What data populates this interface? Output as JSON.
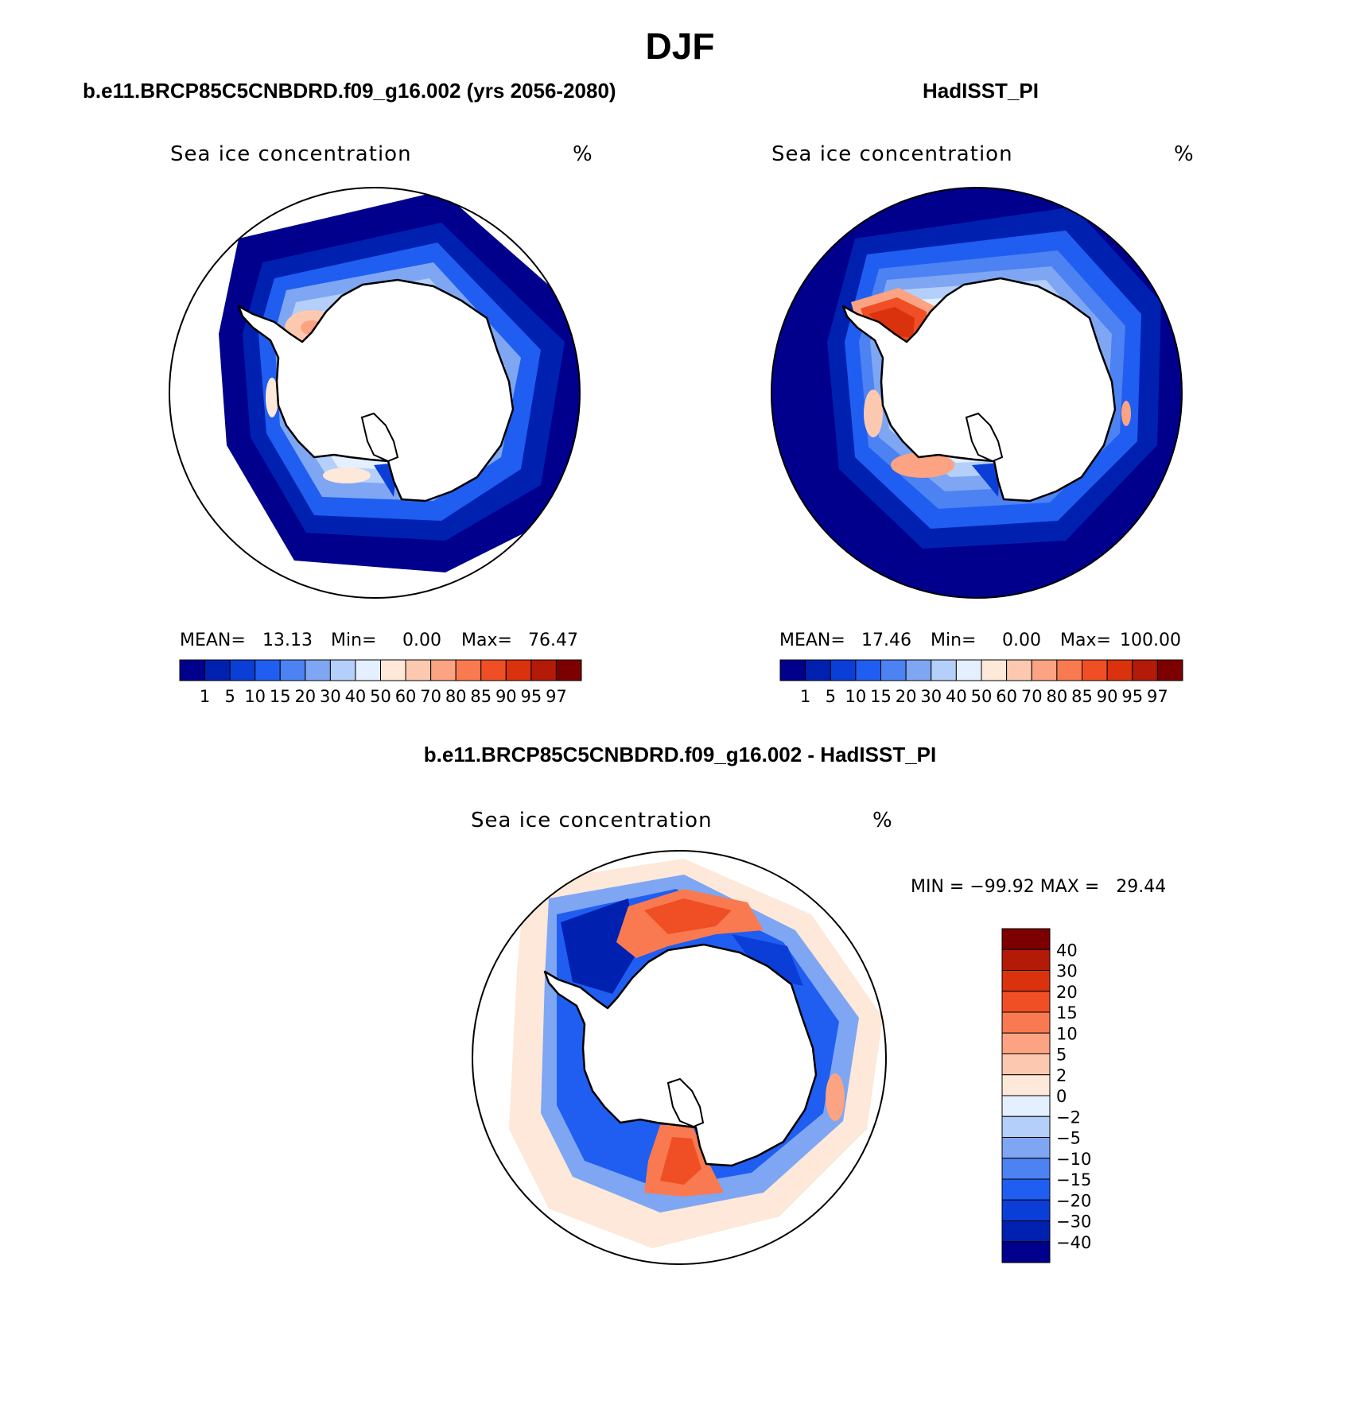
{
  "figure": {
    "title": "DJF"
  },
  "colors": {
    "seq": [
      "#00008c",
      "#0021b0",
      "#0b3ed6",
      "#1f5ef0",
      "#4c82f2",
      "#7ea6f3",
      "#b4cff9",
      "#e4efff",
      "#fde8d9",
      "#fcc9b0",
      "#fba382",
      "#f97a50",
      "#f04e24",
      "#d9320d",
      "#b31a08",
      "#7d0000"
    ],
    "land": "#ffffff",
    "coast": "#000000"
  },
  "chart_data": [
    {
      "type": "heatmap",
      "projection": "south-polar-stereographic",
      "panel_title": "b.e11.BRCP85C5CNBDRD.f09_g16.002 (yrs 2056-2080)",
      "field_label": "Sea ice concentration",
      "units": "%",
      "stats": {
        "mean_label": "MEAN=",
        "mean": "13.13",
        "min_label": "Min=",
        "min": "0.00",
        "max_label": "Max=",
        "max": "76.47"
      },
      "levels": [
        "1",
        "5",
        "10",
        "15",
        "20",
        "30",
        "40",
        "50",
        "60",
        "70",
        "80",
        "85",
        "90",
        "95",
        "97"
      ]
    },
    {
      "type": "heatmap",
      "projection": "south-polar-stereographic",
      "panel_title": "HadISST_PI",
      "field_label": "Sea ice concentration",
      "units": "%",
      "stats": {
        "mean_label": "MEAN=",
        "mean": "17.46",
        "min_label": "Min=",
        "min": "0.00",
        "max_label": "Max=",
        "max": "100.00"
      },
      "levels": [
        "1",
        "5",
        "10",
        "15",
        "20",
        "30",
        "40",
        "50",
        "60",
        "70",
        "80",
        "85",
        "90",
        "95",
        "97"
      ]
    },
    {
      "type": "heatmap",
      "projection": "south-polar-stereographic",
      "panel_title": "b.e11.BRCP85C5CNBDRD.f09_g16.002 - HadISST_PI",
      "field_label": "Sea ice concentration",
      "units": "%",
      "stats_text": "MIN = −99.92 MAX =   29.44",
      "levels": [
        "40",
        "30",
        "20",
        "15",
        "10",
        "5",
        "2",
        "0",
        "−2",
        "−5",
        "−10",
        "−15",
        "−20",
        "−30",
        "−40"
      ],
      "colors": [
        "#7d0000",
        "#b31a08",
        "#d9320d",
        "#f04e24",
        "#f97a50",
        "#fba382",
        "#fcc9b0",
        "#fde8d9",
        "#e4efff",
        "#b4cff9",
        "#7ea6f3",
        "#4c82f2",
        "#1f5ef0",
        "#0b3ed6",
        "#0021b0",
        "#00008c"
      ]
    }
  ]
}
